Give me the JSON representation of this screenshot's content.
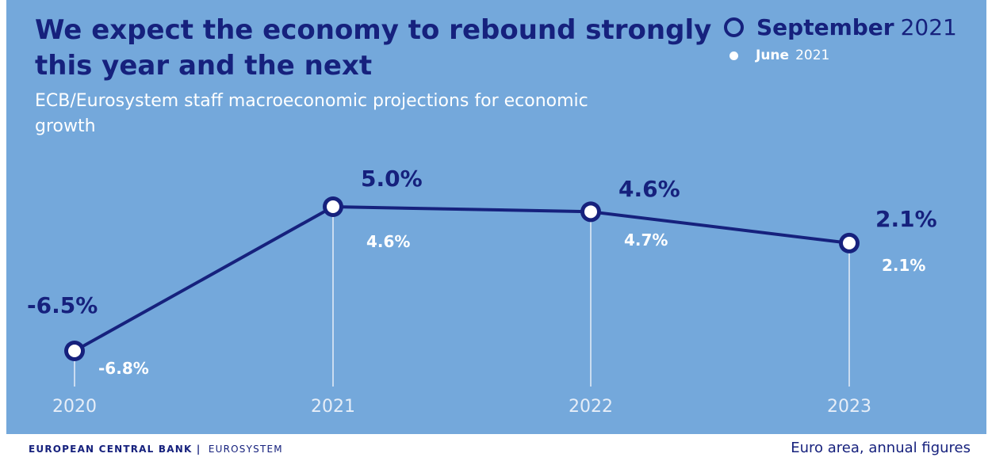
{
  "title": "We expect the economy to rebound strongly this year and the next",
  "subtitle": "ECB/Eurosystem staff macroeconomic projections for economic growth",
  "legend": {
    "september": {
      "bold": "September",
      "light": "2021"
    },
    "june": {
      "bold": "June",
      "light": "2021"
    }
  },
  "footer": {
    "org": "EUROPEAN CENTRAL BANK",
    "separator": "|",
    "sub": "EUROSYSTEM",
    "note": "Euro area, annual figures"
  },
  "colors": {
    "background": "#74a8db",
    "september": "#16217d",
    "june": "#ffffff",
    "ticks": "#e6eef8"
  },
  "chart_data": {
    "type": "line",
    "categories": [
      "2020",
      "2021",
      "2022",
      "2023"
    ],
    "series": [
      {
        "name": "September 2021",
        "values": [
          -6.5,
          5.0,
          4.6,
          2.1
        ],
        "labels": [
          "-6.5%",
          "5.0%",
          "4.6%",
          "2.1%"
        ]
      },
      {
        "name": "June 2021",
        "values": [
          -6.8,
          4.6,
          4.7,
          2.1
        ],
        "labels": [
          "-6.8%",
          "4.6%",
          "4.7%",
          "2.1%"
        ]
      }
    ],
    "ylim": [
      -6.5,
      5.0
    ],
    "grid": false,
    "legend_position": "top-right"
  }
}
